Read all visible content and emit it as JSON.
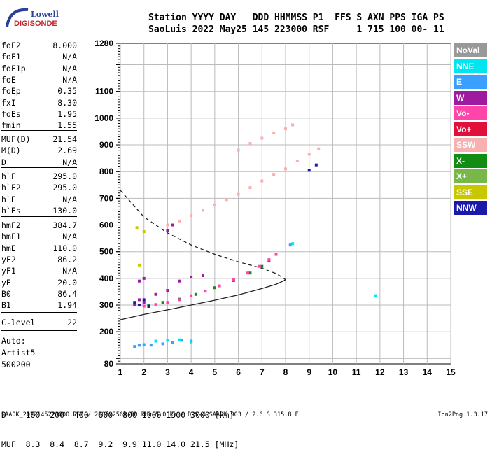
{
  "logo": {
    "line1": "Lowell",
    "line2": "DIGISONDE"
  },
  "header": {
    "labels": "Station YYYY DAY   DDD HHMMSS P1  FFS S AXN PPS IGA PS",
    "values": "SaoLuis 2022 May25 145 223000 RSF     1 715 100 00- 11"
  },
  "params": {
    "group1": [
      {
        "k": "foF2",
        "v": "8.000"
      },
      {
        "k": "foF1",
        "v": "N/A"
      },
      {
        "k": "foF1p",
        "v": "N/A"
      },
      {
        "k": "foE",
        "v": "N/A"
      },
      {
        "k": "foEp",
        "v": "0.35"
      },
      {
        "k": "fxI",
        "v": "8.30"
      },
      {
        "k": "foEs",
        "v": "1.95"
      },
      {
        "k": "fmin",
        "v": "1.55"
      }
    ],
    "group2": [
      {
        "k": "MUF(D)",
        "v": "21.54"
      },
      {
        "k": "M(D)",
        "v": "2.69"
      },
      {
        "k": "D",
        "v": "N/A"
      }
    ],
    "group3": [
      {
        "k": "h`F",
        "v": "295.0"
      },
      {
        "k": "h`F2",
        "v": "295.0"
      },
      {
        "k": "h`E",
        "v": "N/A"
      },
      {
        "k": "h`Es",
        "v": "130.0"
      }
    ],
    "group4": [
      {
        "k": "hmF2",
        "v": "384.7"
      },
      {
        "k": "hmF1",
        "v": "N/A"
      },
      {
        "k": "hmE",
        "v": "110.0"
      },
      {
        "k": "yF2",
        "v": "86.2"
      },
      {
        "k": "yF1",
        "v": "N/A"
      },
      {
        "k": "yE",
        "v": "20.0"
      },
      {
        "k": "B0",
        "v": "86.4"
      },
      {
        "k": "B1",
        "v": "1.94"
      }
    ],
    "group5": [
      {
        "k": "C-level",
        "v": "22"
      }
    ],
    "autoscaling": {
      "line1": "Auto:",
      "line2": "Artist5",
      "line3": "500200"
    }
  },
  "legend": [
    {
      "label": "NoVal",
      "color": "#999999"
    },
    {
      "label": "NNE",
      "color": "#00e5ee"
    },
    {
      "label": "E",
      "color": "#3aa0ff"
    },
    {
      "label": "W",
      "color": "#a01aa0"
    },
    {
      "label": "Vo-",
      "color": "#ff44aa"
    },
    {
      "label": "Vo+",
      "color": "#e0103a"
    },
    {
      "label": "SSW",
      "color": "#f8b0b0"
    },
    {
      "label": "X-",
      "color": "#128c12"
    },
    {
      "label": "X+",
      "color": "#78b848"
    },
    {
      "label": "SSE",
      "color": "#c8c800"
    },
    {
      "label": "NNW",
      "color": "#1a1aa8"
    }
  ],
  "muf_table": {
    "row1": "D    100  200  400  600  800 1000 1500 3000 [km]",
    "row2": "MUF  8.3  8.4  8.7  9.2  9.9 11.0 14.0 21.5 [MHz]"
  },
  "footer": {
    "left": "SAA0K_2022145223000.RSF / 280fx256h 50 kHz 5.0 km / DPS-4 SAA0K 903 / 2.6 S 315.8 E",
    "right": "Ion2Png 1.3.17"
  },
  "chart_data": {
    "type": "scatter",
    "xlim": [
      1,
      15
    ],
    "ylim": [
      80,
      1280
    ],
    "x_ticks": [
      1,
      2,
      3,
      4,
      5,
      6,
      7,
      8,
      9,
      10,
      11,
      12,
      13,
      14,
      15
    ],
    "y_ticks": [
      80,
      200,
      300,
      400,
      500,
      600,
      700,
      800,
      900,
      1000,
      1100,
      1280
    ],
    "grid": true,
    "legend_placement": "right",
    "traces": [
      {
        "name": "X-",
        "color": "#128c12",
        "x": [
          2.2,
          2.8,
          3.5,
          4.2,
          5.0,
          5.8,
          6.5,
          7.0,
          7.3,
          7.6
        ],
        "y": [
          300,
          310,
          322,
          340,
          365,
          392,
          420,
          445,
          465,
          490
        ]
      },
      {
        "name": "Vo-",
        "color": "#ff44aa",
        "x": [
          2.0,
          2.5,
          3.0,
          3.5,
          4.0,
          4.6,
          5.2,
          5.8,
          6.4,
          6.9,
          7.3,
          7.6
        ],
        "y": [
          296,
          302,
          310,
          320,
          335,
          352,
          372,
          395,
          420,
          445,
          470,
          490
        ]
      },
      {
        "name": "W",
        "color": "#a01aa0",
        "x": [
          1.6,
          1.8,
          2.0,
          2.5,
          3.0,
          3.5,
          4.0,
          4.5,
          1.8,
          2.0,
          3.0,
          3.2
        ],
        "y": [
          300,
          320,
          310,
          340,
          355,
          390,
          405,
          410,
          390,
          400,
          580,
          600
        ]
      },
      {
        "name": "NNW",
        "color": "#1a1aa8",
        "x": [
          1.6,
          1.8,
          2.0,
          2.2,
          9.0,
          9.3
        ],
        "y": [
          310,
          300,
          320,
          295,
          805,
          825
        ]
      },
      {
        "name": "SSW",
        "color": "#f8b0b0",
        "x": [
          3.0,
          3.5,
          4.0,
          4.5,
          5.0,
          5.5,
          6.0,
          6.5,
          7.0,
          7.5,
          8.0,
          8.5,
          9.0,
          9.4,
          6.0,
          6.5,
          7.0,
          7.5,
          8.0,
          8.3
        ],
        "y": [
          600,
          615,
          635,
          655,
          675,
          695,
          715,
          740,
          765,
          790,
          810,
          840,
          865,
          885,
          880,
          905,
          925,
          945,
          960,
          975
        ]
      },
      {
        "name": "E",
        "color": "#3aa0ff",
        "x": [
          1.6,
          1.8,
          2.0,
          2.3,
          2.8,
          3.2,
          3.6,
          4.0,
          8.2
        ],
        "y": [
          145,
          150,
          152,
          150,
          155,
          160,
          168,
          165,
          525
        ]
      },
      {
        "name": "NNE",
        "color": "#00e5ee",
        "x": [
          2.5,
          3.0,
          3.5,
          4.0,
          8.3,
          11.8
        ],
        "y": [
          165,
          168,
          170,
          162,
          530,
          335
        ]
      },
      {
        "name": "SSE",
        "color": "#c8c800",
        "x": [
          1.7,
          2.0,
          1.8
        ],
        "y": [
          590,
          575,
          450
        ]
      }
    ],
    "profile_solid": {
      "x": [
        1.0,
        2.0,
        3.0,
        4.0,
        5.0,
        6.0,
        7.0,
        7.6,
        7.9,
        8.0
      ],
      "y": [
        245,
        265,
        282,
        300,
        318,
        338,
        362,
        378,
        390,
        395
      ]
    },
    "profile_dashed": {
      "x": [
        1.0,
        2.0,
        3.0,
        4.0,
        5.0,
        6.0,
        7.0,
        7.6,
        7.9,
        8.0
      ],
      "y": [
        730,
        630,
        570,
        525,
        490,
        462,
        438,
        418,
        402,
        395
      ]
    }
  }
}
